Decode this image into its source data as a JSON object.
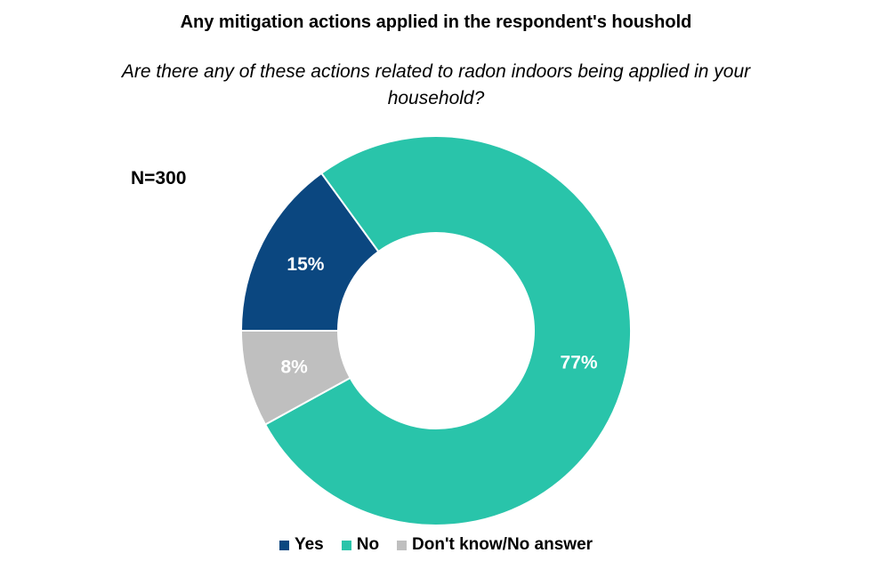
{
  "chart_data": {
    "type": "pie",
    "title": "Any mitigation actions applied in the respondent's houshold",
    "subtitle": "Are there any of these actions related to radon indoors being applied in your household?",
    "annotation": "N=300",
    "donut": true,
    "legend_position": "bottom",
    "categories": [
      "Yes",
      "No",
      "Don't know/No answer"
    ],
    "values": [
      15,
      77,
      8
    ],
    "labels": [
      "15%",
      "77%",
      "8%"
    ],
    "colors": [
      "#0B4780",
      "#29C4AA",
      "#BFBFBF"
    ],
    "label_color": "#ffffff"
  }
}
